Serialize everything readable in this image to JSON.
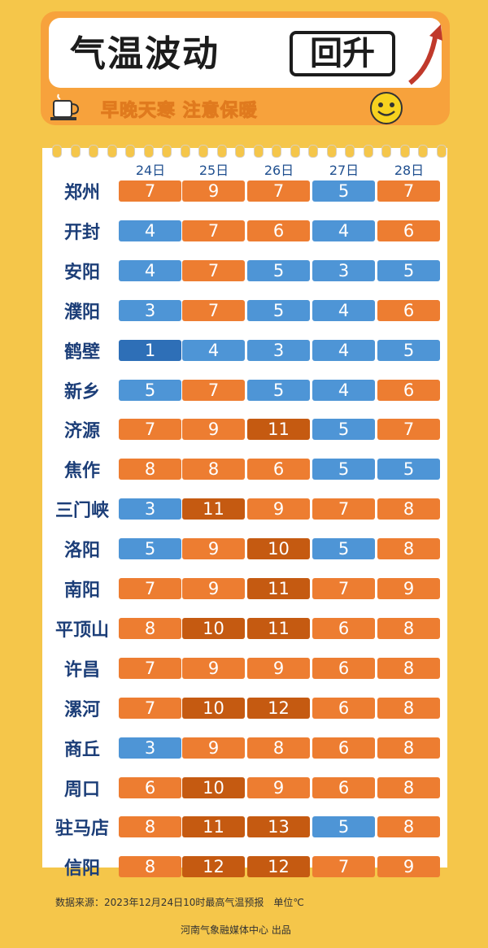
{
  "header": {
    "title": "气温波动",
    "title_boxed": "回升",
    "subtitle": "早晚天寒 注意保暖"
  },
  "colors": {
    "band_lt5": "#2e6fb7",
    "band_5to7": "#4e95d6",
    "band_7to10": "#ed7d31",
    "band_ge10": "#c55a11"
  },
  "chart_data": {
    "type": "table",
    "columns": [
      "24日",
      "25日",
      "26日",
      "27日",
      "28日"
    ],
    "rows": [
      {
        "city": "郑州",
        "values": [
          7,
          9,
          7,
          5,
          7
        ]
      },
      {
        "city": "开封",
        "values": [
          4,
          7,
          6,
          4,
          6
        ]
      },
      {
        "city": "安阳",
        "values": [
          4,
          7,
          5,
          3,
          5
        ]
      },
      {
        "city": "濮阳",
        "values": [
          3,
          7,
          5,
          4,
          6
        ]
      },
      {
        "city": "鹤壁",
        "values": [
          1,
          4,
          3,
          4,
          5
        ]
      },
      {
        "city": "新乡",
        "values": [
          5,
          7,
          5,
          4,
          6
        ]
      },
      {
        "city": "济源",
        "values": [
          7,
          9,
          11,
          5,
          7
        ]
      },
      {
        "city": "焦作",
        "values": [
          8,
          8,
          6,
          5,
          5
        ]
      },
      {
        "city": "三门峡",
        "values": [
          3,
          11,
          9,
          7,
          8
        ]
      },
      {
        "city": "洛阳",
        "values": [
          5,
          9,
          10,
          5,
          8
        ]
      },
      {
        "city": "南阳",
        "values": [
          7,
          9,
          11,
          7,
          9
        ]
      },
      {
        "city": "平顶山",
        "values": [
          8,
          10,
          11,
          6,
          8
        ]
      },
      {
        "city": "许昌",
        "values": [
          7,
          9,
          9,
          6,
          8
        ]
      },
      {
        "city": "漯河",
        "values": [
          7,
          10,
          12,
          6,
          8
        ]
      },
      {
        "city": "商丘",
        "values": [
          3,
          9,
          8,
          6,
          8
        ]
      },
      {
        "city": "周口",
        "values": [
          6,
          10,
          9,
          6,
          8
        ]
      },
      {
        "city": "驻马店",
        "values": [
          8,
          11,
          13,
          5,
          8
        ]
      },
      {
        "city": "信阳",
        "values": [
          8,
          12,
          12,
          7,
          9
        ]
      }
    ]
  },
  "footer": {
    "source": "数据来源：2023年12月24日10时最高气温预报　单位℃",
    "publisher": "河南气象融媒体中心 出品"
  }
}
